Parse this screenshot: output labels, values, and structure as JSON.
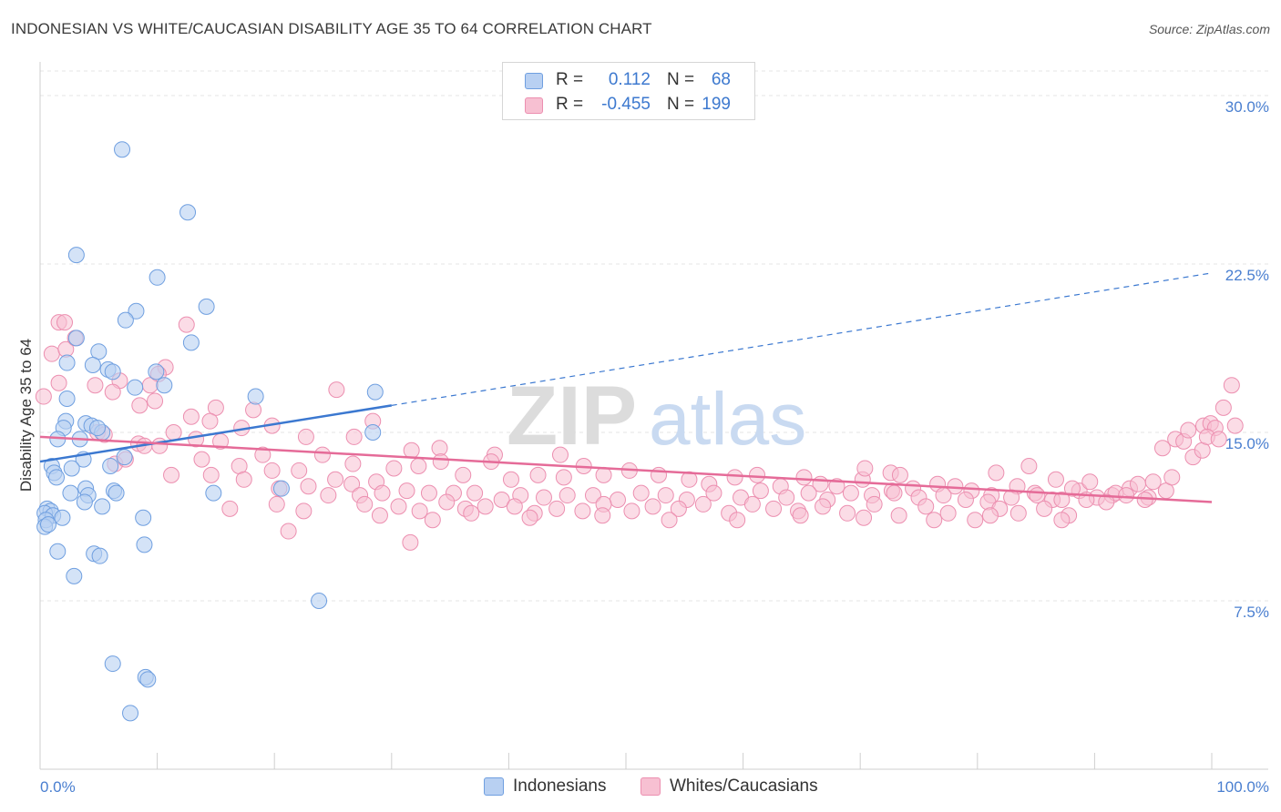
{
  "header": {
    "title": "INDONESIAN VS WHITE/CAUCASIAN DISABILITY AGE 35 TO 64 CORRELATION CHART",
    "source": "Source: ZipAtlas.com"
  },
  "legend": {
    "rows": [
      {
        "r_label": "R =",
        "r_value": "0.112",
        "n_label": "N =",
        "n_value": "68"
      },
      {
        "r_label": "R =",
        "r_value": "-0.455",
        "n_label": "N =",
        "n_value": "199"
      }
    ]
  },
  "bottom_legend": {
    "items": [
      {
        "label": "Indonesians"
      },
      {
        "label": "Whites/Caucasians"
      }
    ]
  },
  "watermark": {
    "part1": "ZIP",
    "part2": "atlas"
  },
  "colors": {
    "indonesian_fill": "#b8d0f2",
    "indonesian_stroke": "#6f9fe0",
    "indonesian_line": "#3b78d0",
    "white_fill": "#f7c0d2",
    "white_stroke": "#ec8fb0",
    "white_line": "#e56b98",
    "tick_text": "#4a7fd0",
    "grid": "#e4e4e4"
  },
  "chart_data": {
    "type": "scatter",
    "title": "INDONESIAN VS WHITE/CAUCASIAN DISABILITY AGE 35 TO 64 CORRELATION CHART",
    "xlabel": "",
    "ylabel": "Disability Age 35 to 64",
    "xlim": [
      0,
      100
    ],
    "ylim": [
      0,
      31.5
    ],
    "x_tick_labels": [
      "0.0%",
      "100.0%"
    ],
    "y_ticks": [
      7.5,
      15.0,
      22.5,
      30.0
    ],
    "y_tick_labels": [
      "7.5%",
      "15.0%",
      "22.5%",
      "30.0%"
    ],
    "grid": true,
    "legend_position": "top-center",
    "series": [
      {
        "name": "Indonesians",
        "r": 0.112,
        "n": 68,
        "trend": {
          "x0": 0,
          "y0": 13.7,
          "x1": 30,
          "y1": 16.2,
          "dashed_to_x": 100,
          "dashed_to_y": 22.1
        },
        "points": [
          [
            7.0,
            27.6
          ],
          [
            12.6,
            24.8
          ],
          [
            3.1,
            22.9
          ],
          [
            10.0,
            21.9
          ],
          [
            14.2,
            20.6
          ],
          [
            8.2,
            20.4
          ],
          [
            7.3,
            20.0
          ],
          [
            3.1,
            19.2
          ],
          [
            12.9,
            19.0
          ],
          [
            5.0,
            18.6
          ],
          [
            2.3,
            18.1
          ],
          [
            4.5,
            18.0
          ],
          [
            5.8,
            17.8
          ],
          [
            6.2,
            17.7
          ],
          [
            9.9,
            17.7
          ],
          [
            10.6,
            17.1
          ],
          [
            8.1,
            17.0
          ],
          [
            18.4,
            16.6
          ],
          [
            28.6,
            16.8
          ],
          [
            2.3,
            16.5
          ],
          [
            2.2,
            15.5
          ],
          [
            3.9,
            15.4
          ],
          [
            4.4,
            15.3
          ],
          [
            2.0,
            15.2
          ],
          [
            1.5,
            14.7
          ],
          [
            5.3,
            15.0
          ],
          [
            4.9,
            15.2
          ],
          [
            28.4,
            15.0
          ],
          [
            3.4,
            14.7
          ],
          [
            7.2,
            13.9
          ],
          [
            3.7,
            13.8
          ],
          [
            1.0,
            13.5
          ],
          [
            6.0,
            13.5
          ],
          [
            2.7,
            13.4
          ],
          [
            1.2,
            13.2
          ],
          [
            1.4,
            13.0
          ],
          [
            20.6,
            12.5
          ],
          [
            3.9,
            12.5
          ],
          [
            6.3,
            12.4
          ],
          [
            2.6,
            12.3
          ],
          [
            6.5,
            12.3
          ],
          [
            4.1,
            12.2
          ],
          [
            14.8,
            12.3
          ],
          [
            3.8,
            11.9
          ],
          [
            5.3,
            11.7
          ],
          [
            0.6,
            11.6
          ],
          [
            0.9,
            11.5
          ],
          [
            0.4,
            11.4
          ],
          [
            1.1,
            11.3
          ],
          [
            1.9,
            11.2
          ],
          [
            0.5,
            11.1
          ],
          [
            0.4,
            10.8
          ],
          [
            8.8,
            11.2
          ],
          [
            0.7,
            10.9
          ],
          [
            1.5,
            9.7
          ],
          [
            8.9,
            10.0
          ],
          [
            4.6,
            9.6
          ],
          [
            5.1,
            9.5
          ],
          [
            2.9,
            8.6
          ],
          [
            23.8,
            7.5
          ],
          [
            6.2,
            4.7
          ],
          [
            9.0,
            4.1
          ],
          [
            9.2,
            4.0
          ],
          [
            7.7,
            2.5
          ]
        ]
      },
      {
        "name": "Whites/Caucasians",
        "r": -0.455,
        "n": 199,
        "trend": {
          "x0": 0,
          "y0": 14.8,
          "x1": 100,
          "y1": 11.9
        },
        "points": [
          [
            1.6,
            19.9
          ],
          [
            2.1,
            19.9
          ],
          [
            12.5,
            19.8
          ],
          [
            1.0,
            18.5
          ],
          [
            2.2,
            18.7
          ],
          [
            3.0,
            19.2
          ],
          [
            10.7,
            17.9
          ],
          [
            10.1,
            17.6
          ],
          [
            1.6,
            17.2
          ],
          [
            4.7,
            17.1
          ],
          [
            6.8,
            17.3
          ],
          [
            9.4,
            17.1
          ],
          [
            0.3,
            16.6
          ],
          [
            6.2,
            16.8
          ],
          [
            9.8,
            16.4
          ],
          [
            8.5,
            16.2
          ],
          [
            15.0,
            16.1
          ],
          [
            18.2,
            16.0
          ],
          [
            25.3,
            16.9
          ],
          [
            28.4,
            15.5
          ],
          [
            12.9,
            15.7
          ],
          [
            14.5,
            15.5
          ],
          [
            17.2,
            15.2
          ],
          [
            19.8,
            15.3
          ],
          [
            4.9,
            15.0
          ],
          [
            5.5,
            14.9
          ],
          [
            11.4,
            15.0
          ],
          [
            13.3,
            14.7
          ],
          [
            8.4,
            14.5
          ],
          [
            8.9,
            14.4
          ],
          [
            10.2,
            14.4
          ],
          [
            15.4,
            14.6
          ],
          [
            22.7,
            14.8
          ],
          [
            26.8,
            14.8
          ],
          [
            6.4,
            13.6
          ],
          [
            7.3,
            13.8
          ],
          [
            13.8,
            13.8
          ],
          [
            19.0,
            14.0
          ],
          [
            24.1,
            14.0
          ],
          [
            31.7,
            14.2
          ],
          [
            34.1,
            14.3
          ],
          [
            38.8,
            14.0
          ],
          [
            44.4,
            14.0
          ],
          [
            11.2,
            13.1
          ],
          [
            14.6,
            13.1
          ],
          [
            17.0,
            13.5
          ],
          [
            17.4,
            12.9
          ],
          [
            19.8,
            13.3
          ],
          [
            22.1,
            13.3
          ],
          [
            25.2,
            12.9
          ],
          [
            26.7,
            13.6
          ],
          [
            28.7,
            12.8
          ],
          [
            30.2,
            13.4
          ],
          [
            32.3,
            13.5
          ],
          [
            34.2,
            13.7
          ],
          [
            36.1,
            13.1
          ],
          [
            38.5,
            13.7
          ],
          [
            40.2,
            12.9
          ],
          [
            42.5,
            13.1
          ],
          [
            44.7,
            13.0
          ],
          [
            46.4,
            13.5
          ],
          [
            48.1,
            13.1
          ],
          [
            50.3,
            13.3
          ],
          [
            52.8,
            13.1
          ],
          [
            55.4,
            12.9
          ],
          [
            57.1,
            12.7
          ],
          [
            59.3,
            13.0
          ],
          [
            61.2,
            13.1
          ],
          [
            63.2,
            12.6
          ],
          [
            65.2,
            13.0
          ],
          [
            66.6,
            12.7
          ],
          [
            68.0,
            12.6
          ],
          [
            70.2,
            12.9
          ],
          [
            72.7,
            12.4
          ],
          [
            74.5,
            12.5
          ],
          [
            76.6,
            12.7
          ],
          [
            78.1,
            12.6
          ],
          [
            79.5,
            12.4
          ],
          [
            81.2,
            12.2
          ],
          [
            83.4,
            12.6
          ],
          [
            84.9,
            12.3
          ],
          [
            86.4,
            12.0
          ],
          [
            88.7,
            12.4
          ],
          [
            90.2,
            12.1
          ],
          [
            91.5,
            12.2
          ],
          [
            93.0,
            12.5
          ],
          [
            94.6,
            12.1
          ],
          [
            96.1,
            12.4
          ],
          [
            72.6,
            13.2
          ],
          [
            70.4,
            13.4
          ],
          [
            73.4,
            13.1
          ],
          [
            81.6,
            13.2
          ],
          [
            84.4,
            13.5
          ],
          [
            86.7,
            12.9
          ],
          [
            88.1,
            12.5
          ],
          [
            89.6,
            12.8
          ],
          [
            91.8,
            12.3
          ],
          [
            93.7,
            12.7
          ],
          [
            95.0,
            12.8
          ],
          [
            96.6,
            13.0
          ],
          [
            98.4,
            13.9
          ],
          [
            99.2,
            14.2
          ],
          [
            95.8,
            14.3
          ],
          [
            96.9,
            14.7
          ],
          [
            97.6,
            14.6
          ],
          [
            98.0,
            15.1
          ],
          [
            99.3,
            15.3
          ],
          [
            99.9,
            15.4
          ],
          [
            100.3,
            15.2
          ],
          [
            101.0,
            16.1
          ],
          [
            101.7,
            17.1
          ],
          [
            99.6,
            14.8
          ],
          [
            100.6,
            14.7
          ],
          [
            102.0,
            15.3
          ],
          [
            20.4,
            12.5
          ],
          [
            22.9,
            12.6
          ],
          [
            24.6,
            12.2
          ],
          [
            26.6,
            12.7
          ],
          [
            27.3,
            12.2
          ],
          [
            29.2,
            12.3
          ],
          [
            31.3,
            12.4
          ],
          [
            33.2,
            12.3
          ],
          [
            35.3,
            12.3
          ],
          [
            37.1,
            12.3
          ],
          [
            39.4,
            12.0
          ],
          [
            41.0,
            12.2
          ],
          [
            43.0,
            12.1
          ],
          [
            45.0,
            12.2
          ],
          [
            47.2,
            12.2
          ],
          [
            49.3,
            12.0
          ],
          [
            51.3,
            12.3
          ],
          [
            53.4,
            12.2
          ],
          [
            55.2,
            12.0
          ],
          [
            57.5,
            12.3
          ],
          [
            59.8,
            12.1
          ],
          [
            61.5,
            12.4
          ],
          [
            63.7,
            12.1
          ],
          [
            65.6,
            12.3
          ],
          [
            67.2,
            12.0
          ],
          [
            69.2,
            12.3
          ],
          [
            71.0,
            12.2
          ],
          [
            72.9,
            12.3
          ],
          [
            75.0,
            12.1
          ],
          [
            77.1,
            12.2
          ],
          [
            79.0,
            12.0
          ],
          [
            80.9,
            11.9
          ],
          [
            82.9,
            12.1
          ],
          [
            85.1,
            12.2
          ],
          [
            87.2,
            12.0
          ],
          [
            89.3,
            12.0
          ],
          [
            91.0,
            11.9
          ],
          [
            92.7,
            12.2
          ],
          [
            94.3,
            12.0
          ],
          [
            30.6,
            11.7
          ],
          [
            32.4,
            11.5
          ],
          [
            34.7,
            11.9
          ],
          [
            36.3,
            11.6
          ],
          [
            38.0,
            11.7
          ],
          [
            40.5,
            11.7
          ],
          [
            42.2,
            11.4
          ],
          [
            44.1,
            11.6
          ],
          [
            46.3,
            11.5
          ],
          [
            48.1,
            11.8
          ],
          [
            50.5,
            11.5
          ],
          [
            52.3,
            11.7
          ],
          [
            54.5,
            11.6
          ],
          [
            56.6,
            11.8
          ],
          [
            58.8,
            11.4
          ],
          [
            60.8,
            11.8
          ],
          [
            62.6,
            11.6
          ],
          [
            64.7,
            11.5
          ],
          [
            66.8,
            11.7
          ],
          [
            68.9,
            11.4
          ],
          [
            71.2,
            11.8
          ],
          [
            73.3,
            11.3
          ],
          [
            75.6,
            11.7
          ],
          [
            77.5,
            11.4
          ],
          [
            79.8,
            11.1
          ],
          [
            81.9,
            11.6
          ],
          [
            83.5,
            11.4
          ],
          [
            85.7,
            11.6
          ],
          [
            87.8,
            11.3
          ],
          [
            16.2,
            11.6
          ],
          [
            20.2,
            11.8
          ],
          [
            22.5,
            11.5
          ],
          [
            27.7,
            11.8
          ],
          [
            29.0,
            11.3
          ],
          [
            33.5,
            11.1
          ],
          [
            36.8,
            11.4
          ],
          [
            41.8,
            11.2
          ],
          [
            48.0,
            11.3
          ],
          [
            53.7,
            11.1
          ],
          [
            59.5,
            11.1
          ],
          [
            64.9,
            11.3
          ],
          [
            70.3,
            11.2
          ],
          [
            76.3,
            11.1
          ],
          [
            81.1,
            11.3
          ],
          [
            87.2,
            11.1
          ],
          [
            21.2,
            10.6
          ],
          [
            31.6,
            10.1
          ]
        ]
      }
    ]
  }
}
